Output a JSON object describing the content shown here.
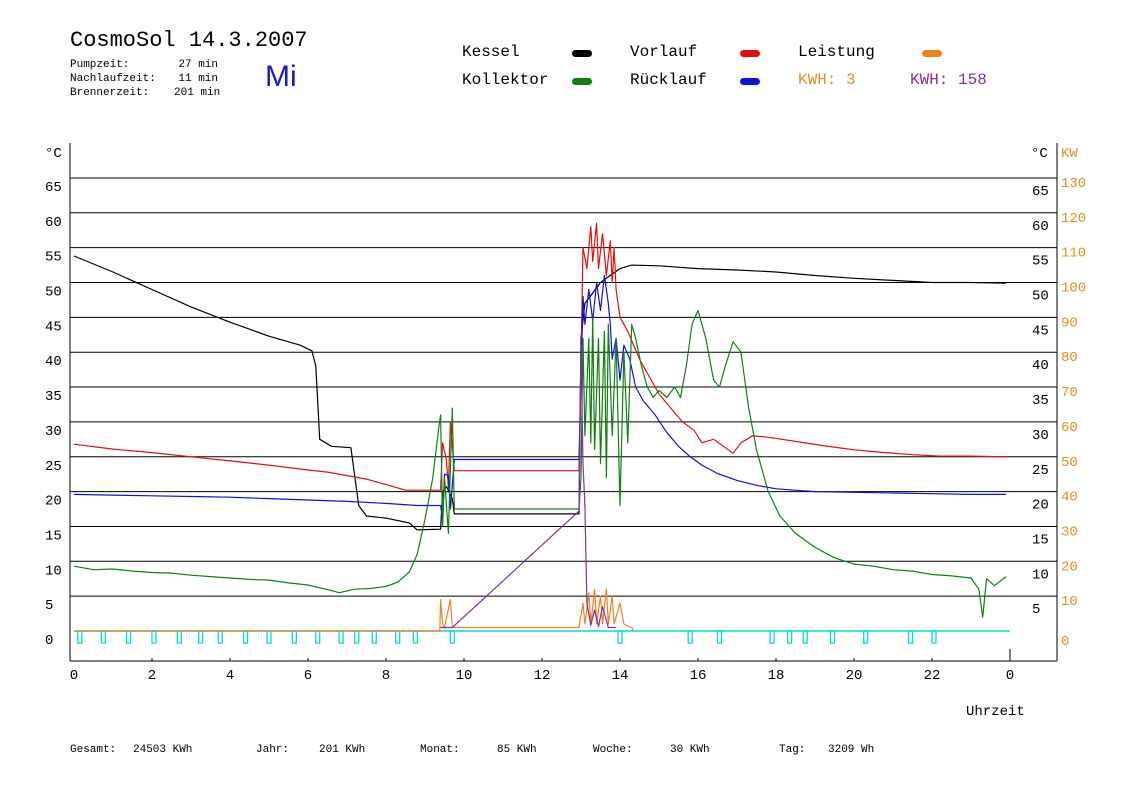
{
  "header": {
    "title": "CosmoSol 14.3.2007",
    "day": "Mi",
    "stats": [
      {
        "label": "Pumpzeit:",
        "value": "27 min"
      },
      {
        "label": "Nachlaufzeit:",
        "value": "11 min"
      },
      {
        "label": "Brennerzeit:",
        "value": "201 min"
      }
    ]
  },
  "legend": {
    "items": [
      {
        "name": "Kessel",
        "color": "#000000"
      },
      {
        "name": "Vorlauf",
        "color": "#e01010"
      },
      {
        "name": "Leistung",
        "color": "#f08020"
      },
      {
        "name": "Kollektor",
        "color": "#108010"
      },
      {
        "name": "Rücklauf",
        "color": "#1010e0"
      }
    ],
    "kwh": [
      {
        "label": "KWH:",
        "value": "3",
        "color": "#e09020"
      },
      {
        "label": "KWH:",
        "value": "158",
        "color": "#8030a0"
      }
    ]
  },
  "footer": {
    "items": [
      {
        "label": "Gesamt:",
        "value": "24503 KWh"
      },
      {
        "label": "Jahr:",
        "value": "201 KWh"
      },
      {
        "label": "Monat:",
        "value": "85 KWh"
      },
      {
        "label": "Woche:",
        "value": "30 KWh"
      },
      {
        "label": "Tag:",
        "value": "3209 Wh"
      }
    ]
  },
  "chart_data": {
    "type": "line",
    "xlabel": "Uhrzeit",
    "ylabel_left": "°C",
    "ylabel_right_c": "°C",
    "ylabel_right_kw": "KW",
    "xlim": [
      0,
      24
    ],
    "ylim": [
      0,
      65
    ],
    "ylim_kw": [
      0,
      130
    ],
    "x_tick_labels": [
      "0",
      "2",
      "4",
      "6",
      "8",
      "10",
      "12",
      "14",
      "16",
      "18",
      "20",
      "22",
      "0"
    ],
    "y_ticks": [
      0,
      5,
      10,
      15,
      20,
      25,
      30,
      35,
      40,
      45,
      50,
      55,
      60,
      65
    ],
    "kw_ticks": [
      10,
      20,
      30,
      40,
      50,
      60,
      70,
      80,
      90,
      100,
      110,
      120,
      130
    ],
    "kw_zero_label": "0",
    "grid": true,
    "legend_placement": "top",
    "series": [
      {
        "name": "Kessel",
        "color": "#000000",
        "points": [
          [
            0,
            53.8
          ],
          [
            1,
            51.5
          ],
          [
            2,
            49
          ],
          [
            3,
            46.5
          ],
          [
            4,
            44.3
          ],
          [
            5,
            42.3
          ],
          [
            5.8,
            41
          ],
          [
            6.1,
            40.2
          ],
          [
            6.2,
            38
          ],
          [
            6.3,
            27.5
          ],
          [
            6.6,
            26.5
          ],
          [
            7.1,
            26.3
          ],
          [
            7.3,
            18
          ],
          [
            7.5,
            16.5
          ],
          [
            8.0,
            16.2
          ],
          [
            8.6,
            15.5
          ],
          [
            8.8,
            14.5
          ],
          [
            9.4,
            14.6
          ],
          [
            9.45,
            20
          ],
          [
            9.55,
            20.7
          ],
          [
            9.7,
            19
          ],
          [
            9.75,
            16.8
          ],
          [
            12.95,
            16.8
          ],
          [
            13.0,
            42
          ],
          [
            13.1,
            47
          ],
          [
            13.3,
            48.5
          ],
          [
            13.5,
            50
          ],
          [
            13.7,
            50.8
          ],
          [
            14.0,
            52
          ],
          [
            14.3,
            52.5
          ],
          [
            15,
            52.4
          ],
          [
            16,
            52
          ],
          [
            17,
            51.8
          ],
          [
            18,
            51.5
          ],
          [
            19,
            51
          ],
          [
            20,
            50.6
          ],
          [
            21,
            50.3
          ],
          [
            22,
            50
          ],
          [
            23,
            50
          ],
          [
            23.9,
            49.9
          ]
        ]
      },
      {
        "name": "Vorlauf",
        "color": "#e01010",
        "points": [
          [
            0,
            26.8
          ],
          [
            1,
            26.1
          ],
          [
            2,
            25.6
          ],
          [
            3,
            25.0
          ],
          [
            4,
            24.4
          ],
          [
            5,
            23.8
          ],
          [
            6,
            23.1
          ],
          [
            6.5,
            22.8
          ],
          [
            7,
            22.3
          ],
          [
            7.5,
            21.8
          ],
          [
            8,
            21.0
          ],
          [
            8.5,
            20.2
          ],
          [
            9.4,
            20.2
          ],
          [
            9.45,
            27
          ],
          [
            9.55,
            24.5
          ],
          [
            9.6,
            20.5
          ],
          [
            9.65,
            30
          ],
          [
            9.75,
            23
          ],
          [
            12.95,
            23
          ],
          [
            13.05,
            55
          ],
          [
            13.15,
            52
          ],
          [
            13.25,
            58
          ],
          [
            13.3,
            53
          ],
          [
            13.4,
            58.5
          ],
          [
            13.45,
            52
          ],
          [
            13.55,
            57
          ],
          [
            13.65,
            51
          ],
          [
            13.75,
            56
          ],
          [
            13.8,
            50
          ],
          [
            13.85,
            55
          ],
          [
            13.9,
            49
          ],
          [
            14.0,
            45
          ],
          [
            14.2,
            43
          ],
          [
            14.5,
            39
          ],
          [
            14.8,
            36
          ],
          [
            15,
            34
          ],
          [
            15.3,
            32
          ],
          [
            15.6,
            30
          ],
          [
            15.9,
            28.8
          ],
          [
            16.1,
            27
          ],
          [
            16.4,
            27.5
          ],
          [
            16.7,
            26.3
          ],
          [
            16.9,
            25.5
          ],
          [
            17.1,
            27
          ],
          [
            17.4,
            28
          ],
          [
            17.8,
            27.8
          ],
          [
            18.5,
            27.2
          ],
          [
            19.2,
            26.6
          ],
          [
            20,
            26
          ],
          [
            20.8,
            25.6
          ],
          [
            21.5,
            25.3
          ],
          [
            22.2,
            25.1
          ],
          [
            23,
            25.1
          ],
          [
            23.9,
            25
          ]
        ]
      },
      {
        "name": "Rücklauf",
        "color": "#1010e0",
        "points": [
          [
            0,
            19.6
          ],
          [
            1,
            19.5
          ],
          [
            2,
            19.4
          ],
          [
            3,
            19.3
          ],
          [
            4,
            19.2
          ],
          [
            5,
            19.0
          ],
          [
            6,
            18.8
          ],
          [
            7,
            18.6
          ],
          [
            8,
            18.3
          ],
          [
            8.8,
            18.0
          ],
          [
            9.4,
            18
          ],
          [
            9.45,
            16
          ],
          [
            9.5,
            22.5
          ],
          [
            9.6,
            22.3
          ],
          [
            9.65,
            17.5
          ],
          [
            9.75,
            24.6
          ],
          [
            12.95,
            24.6
          ],
          [
            13.05,
            48
          ],
          [
            13.1,
            44
          ],
          [
            13.2,
            49
          ],
          [
            13.3,
            44.5
          ],
          [
            13.4,
            50
          ],
          [
            13.5,
            46
          ],
          [
            13.6,
            51
          ],
          [
            13.7,
            47
          ],
          [
            13.75,
            44
          ],
          [
            13.8,
            39
          ],
          [
            13.9,
            42
          ],
          [
            14.0,
            36
          ],
          [
            14.1,
            41
          ],
          [
            14.25,
            39
          ],
          [
            14.4,
            35
          ],
          [
            14.6,
            33
          ],
          [
            14.9,
            31
          ],
          [
            15.2,
            28.5
          ],
          [
            15.5,
            26.5
          ],
          [
            15.8,
            25
          ],
          [
            16.1,
            23.8
          ],
          [
            16.5,
            22.6
          ],
          [
            17,
            21.6
          ],
          [
            17.5,
            20.9
          ],
          [
            18,
            20.4
          ],
          [
            18.5,
            20.2
          ],
          [
            19,
            20.0
          ],
          [
            20,
            19.9
          ],
          [
            21,
            19.8
          ],
          [
            22,
            19.7
          ],
          [
            23,
            19.6
          ],
          [
            23.9,
            19.6
          ]
        ]
      },
      {
        "name": "Kollektor",
        "color": "#108010",
        "points": [
          [
            0,
            9.3
          ],
          [
            0.5,
            8.8
          ],
          [
            1,
            8.9
          ],
          [
            1.5,
            8.6
          ],
          [
            2,
            8.4
          ],
          [
            2.5,
            8.3
          ],
          [
            3,
            8.0
          ],
          [
            3.5,
            7.8
          ],
          [
            4,
            7.6
          ],
          [
            4.5,
            7.4
          ],
          [
            5,
            7.3
          ],
          [
            5.5,
            6.9
          ],
          [
            6,
            6.6
          ],
          [
            6.3,
            6.2
          ],
          [
            6.6,
            5.8
          ],
          [
            6.8,
            5.5
          ],
          [
            7.2,
            6.0
          ],
          [
            7.6,
            6.1
          ],
          [
            8.0,
            6.4
          ],
          [
            8.3,
            7.0
          ],
          [
            8.6,
            8.5
          ],
          [
            8.8,
            11
          ],
          [
            9.0,
            16
          ],
          [
            9.2,
            22
          ],
          [
            9.35,
            29
          ],
          [
            9.4,
            31
          ],
          [
            9.45,
            15
          ],
          [
            9.5,
            22
          ],
          [
            9.6,
            14
          ],
          [
            9.7,
            32
          ],
          [
            9.75,
            17.5
          ],
          [
            12.95,
            17.5
          ],
          [
            13.0,
            22
          ],
          [
            13.05,
            42
          ],
          [
            13.1,
            28
          ],
          [
            13.2,
            42
          ],
          [
            13.25,
            27
          ],
          [
            13.3,
            45
          ],
          [
            13.35,
            26
          ],
          [
            13.45,
            42
          ],
          [
            13.5,
            24
          ],
          [
            13.6,
            43
          ],
          [
            13.65,
            22
          ],
          [
            13.7,
            44
          ],
          [
            13.8,
            28
          ],
          [
            13.9,
            42
          ],
          [
            14.0,
            18
          ],
          [
            14.1,
            40
          ],
          [
            14.2,
            27
          ],
          [
            14.3,
            44
          ],
          [
            14.4,
            42
          ],
          [
            14.55,
            38
          ],
          [
            14.7,
            35
          ],
          [
            14.85,
            33.5
          ],
          [
            15.0,
            34.5
          ],
          [
            15.2,
            33.5
          ],
          [
            15.4,
            35
          ],
          [
            15.55,
            33.5
          ],
          [
            15.7,
            38
          ],
          [
            15.85,
            44
          ],
          [
            16.0,
            46
          ],
          [
            16.2,
            42
          ],
          [
            16.4,
            36
          ],
          [
            16.55,
            35
          ],
          [
            16.7,
            38
          ],
          [
            16.9,
            41.5
          ],
          [
            17.1,
            40
          ],
          [
            17.3,
            32
          ],
          [
            17.5,
            26
          ],
          [
            17.8,
            20
          ],
          [
            18.1,
            16.5
          ],
          [
            18.5,
            14
          ],
          [
            19,
            12
          ],
          [
            19.5,
            10.5
          ],
          [
            20,
            9.6
          ],
          [
            20.5,
            9.3
          ],
          [
            21,
            8.8
          ],
          [
            21.5,
            8.6
          ],
          [
            22,
            8.1
          ],
          [
            22.5,
            7.9
          ],
          [
            23,
            7.6
          ],
          [
            23.2,
            6
          ],
          [
            23.3,
            2
          ],
          [
            23.4,
            7.5
          ],
          [
            23.6,
            6.5
          ],
          [
            23.9,
            7.8
          ]
        ]
      },
      {
        "name": "Leistung",
        "color": "#f08020",
        "points": [
          [
            0,
            0
          ],
          [
            9.38,
            0
          ],
          [
            9.4,
            4.5
          ],
          [
            9.45,
            1
          ],
          [
            9.5,
            0.5
          ],
          [
            9.65,
            4.5
          ],
          [
            9.7,
            0.5
          ],
          [
            12.95,
            0.5
          ],
          [
            13.05,
            4
          ],
          [
            13.1,
            1
          ],
          [
            13.2,
            5.5
          ],
          [
            13.25,
            1
          ],
          [
            13.35,
            6
          ],
          [
            13.4,
            1
          ],
          [
            13.5,
            5
          ],
          [
            13.55,
            1
          ],
          [
            13.65,
            6
          ],
          [
            13.7,
            1
          ],
          [
            13.8,
            5
          ],
          [
            13.85,
            1
          ],
          [
            14.0,
            4
          ],
          [
            14.1,
            1
          ],
          [
            14.3,
            0.5
          ],
          [
            14.35,
            0
          ]
        ]
      },
      {
        "name": "KWH 158",
        "color": "#8030a0",
        "points": [
          [
            9.4,
            0.5
          ],
          [
            9.7,
            0.5
          ],
          [
            12.95,
            17.2
          ],
          [
            13.0,
            41
          ],
          [
            13.05,
            24
          ],
          [
            13.1,
            18
          ],
          [
            13.15,
            4
          ],
          [
            13.25,
            0.8
          ],
          [
            13.35,
            3
          ],
          [
            13.45,
            0.6
          ],
          [
            13.55,
            3.5
          ],
          [
            13.7,
            0.5
          ],
          [
            13.9,
            0.5
          ]
        ]
      }
    ],
    "status_markers": {
      "color": "#00dcdc",
      "baseline": 0,
      "x": [
        0.15,
        0.75,
        1.4,
        2.05,
        2.7,
        3.25,
        3.75,
        4.4,
        5.0,
        5.65,
        6.25,
        6.85,
        7.25,
        7.7,
        8.3,
        8.75,
        9.7,
        14.0,
        15.8,
        16.55,
        17.9,
        18.35,
        18.75,
        19.45,
        20.3,
        21.45,
        22.05
      ]
    }
  }
}
